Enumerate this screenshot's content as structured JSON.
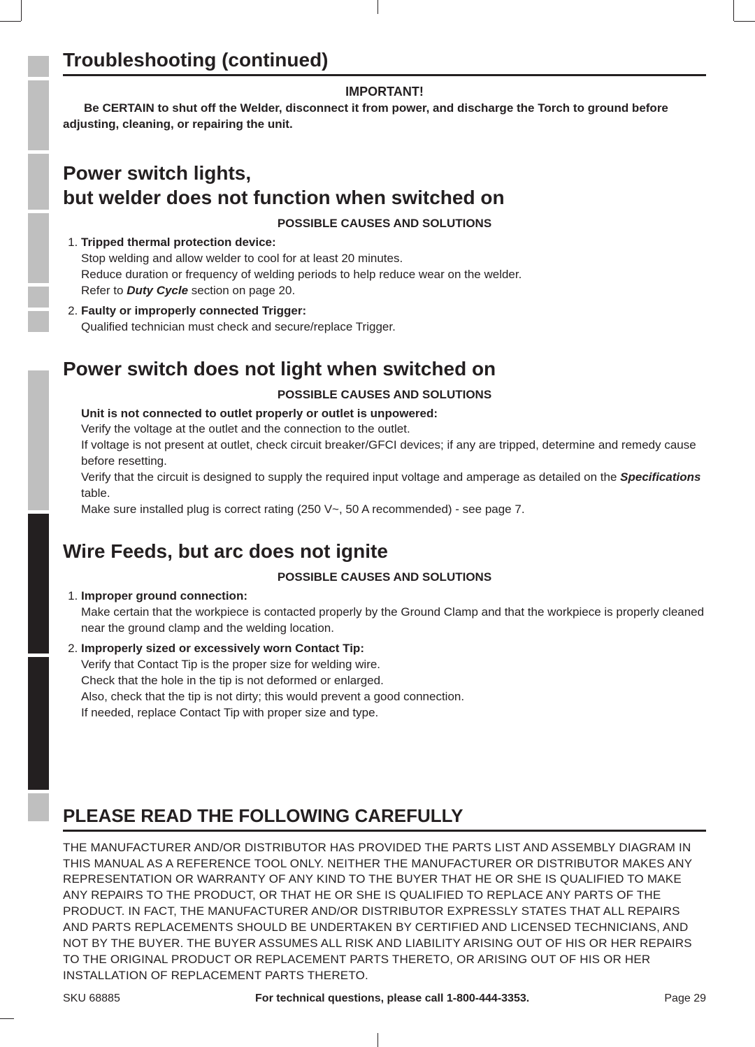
{
  "page_title": "Troubleshooting (continued)",
  "important": {
    "title": "IMPORTANT!",
    "body": "Be CERTAIN to shut off the Welder, disconnect it from power, and discharge the Torch to ground before adjusting, cleaning, or repairing the unit."
  },
  "sections": [
    {
      "heading_line1": "Power switch lights,",
      "heading_line2": "but welder does not function when switched on",
      "causes_label": "POSSIBLE CAUSES AND SOLUTIONS",
      "items": [
        {
          "title": "Tripped thermal protection device:",
          "lines": [
            "Stop welding and allow welder to cool for at least 20 minutes.",
            "Reduce duration or frequency of welding periods to help reduce wear on the welder."
          ],
          "ref_prefix": "Refer to ",
          "ref_bold": "Duty Cycle",
          "ref_suffix": " section on page 20."
        },
        {
          "title": "Faulty or improperly connected Trigger:",
          "lines": [
            "Qualified technician must check and secure/replace Trigger."
          ]
        }
      ]
    },
    {
      "heading_line1": "Power switch does not light when switched on",
      "causes_label": "POSSIBLE CAUSES AND SOLUTIONS",
      "plain": {
        "title": "Unit is not connected to outlet properly or outlet is unpowered:",
        "line1": "Verify the voltage at the outlet and the connection to the outlet.",
        "line2": "If voltage is not present at outlet, check circuit breaker/GFCI devices; if any are tripped, determine and remedy cause before resetting.",
        "line3a": "Verify that the circuit is designed to supply the required input voltage and amperage as detailed on the ",
        "line3b": "Specifications",
        "line3c": " table.",
        "line4": "Make sure installed plug is correct rating (250 V~, 50 A recommended) - see page 7."
      }
    },
    {
      "heading_line1": "Wire Feeds, but arc does not ignite",
      "causes_label": "POSSIBLE CAUSES AND SOLUTIONS",
      "items": [
        {
          "title": "Improper ground connection:",
          "lines": [
            "Make certain that the workpiece is contacted properly by the Ground Clamp and that the workpiece is properly cleaned near the ground clamp and the welding location."
          ]
        },
        {
          "title": "Improperly sized or excessively worn Contact Tip:",
          "lines": [
            "Verify that Contact Tip is the proper size for welding wire.",
            "Check that the hole in the tip is not deformed or enlarged.",
            "Also, check that the tip is not dirty; this would prevent a good connection.",
            "If needed, replace Contact Tip with proper size and type."
          ]
        }
      ]
    }
  ],
  "disclaimer": {
    "heading": "PLEASE READ THE FOLLOWING CAREFULLY",
    "body": "THE MANUFACTURER AND/OR DISTRIBUTOR HAS PROVIDED THE PARTS LIST AND ASSEMBLY DIAGRAM IN THIS MANUAL AS A REFERENCE TOOL ONLY.  NEITHER THE MANUFACTURER OR DISTRIBUTOR MAKES ANY REPRESENTATION OR WARRANTY OF ANY KIND TO THE BUYER THAT HE OR SHE IS QUALIFIED TO MAKE ANY REPAIRS TO THE PRODUCT, OR THAT HE OR SHE IS QUALIFIED TO REPLACE ANY PARTS OF THE PRODUCT.  IN FACT, THE MANUFACTURER AND/OR DISTRIBUTOR EXPRESSLY STATES THAT ALL REPAIRS AND PARTS REPLACEMENTS SHOULD BE UNDERTAKEN BY CERTIFIED AND LICENSED TECHNICIANS, AND NOT BY THE BUYER.  THE BUYER ASSUMES ALL RISK AND LIABILITY ARISING OUT OF HIS OR HER REPAIRS TO THE ORIGINAL PRODUCT OR REPLACEMENT PARTS THERETO, OR ARISING OUT OF HIS OR HER INSTALLATION OF REPLACEMENT PARTS THERETO."
  },
  "footer": {
    "sku": "SKU 68885",
    "center": "For technical questions, please call 1-800-444-3353.",
    "page": "Page 29"
  }
}
